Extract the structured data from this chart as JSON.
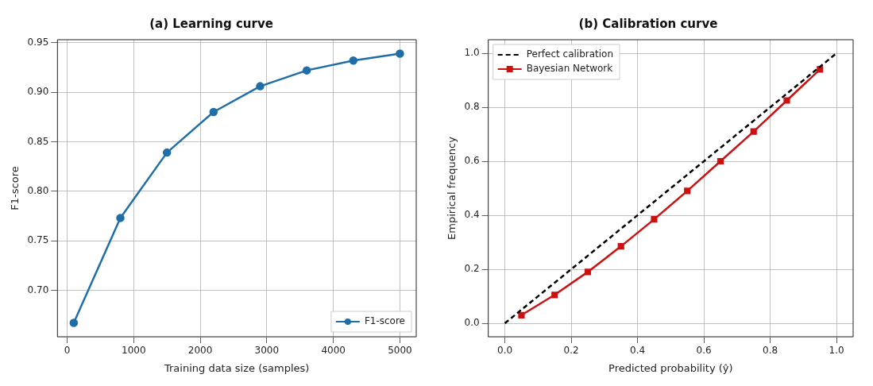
{
  "chart_data": [
    {
      "type": "line",
      "title": "(a) Learning curve",
      "xlabel": "Training data size (samples)",
      "ylabel": "F1-score",
      "x": [
        100,
        800,
        1500,
        2200,
        2900,
        3600,
        4300,
        5000
      ],
      "xlim": [
        -145,
        5245
      ],
      "xticks": [
        0,
        1000,
        2000,
        3000,
        4000,
        5000
      ],
      "ylim": [
        0.653,
        0.953
      ],
      "yticks": [
        {
          "value": 0.7,
          "label": "0.70"
        },
        {
          "value": 0.75,
          "label": "0.75"
        },
        {
          "value": 0.8,
          "label": "0.80"
        },
        {
          "value": 0.85,
          "label": "0.85"
        },
        {
          "value": 0.9,
          "label": "0.90"
        },
        {
          "value": 0.95,
          "label": "0.95"
        }
      ],
      "grid": true,
      "legend": "bottom right",
      "marker": "circle",
      "line_style": "solid",
      "series": [
        {
          "name": "F1-score",
          "color": "#1f6ea8",
          "values": [
            0.667,
            0.773,
            0.839,
            0.88,
            0.906,
            0.922,
            0.932,
            0.939
          ]
        }
      ]
    },
    {
      "type": "line",
      "title": "(b) Calibration curve",
      "xlabel": "Predicted probability (ŷ)",
      "ylabel": "Empirical frequency",
      "xlim": [
        -0.05,
        1.05
      ],
      "xticks": [
        {
          "value": 0,
          "label": "0.0"
        },
        {
          "value": 0.2,
          "label": "0.2"
        },
        {
          "value": 0.4,
          "label": "0.4"
        },
        {
          "value": 0.6,
          "label": "0.6"
        },
        {
          "value": 0.8,
          "label": "0.8"
        },
        {
          "value": 1,
          "label": "1.0"
        }
      ],
      "ylim": [
        -0.05,
        1.05
      ],
      "yticks": [
        {
          "value": 0,
          "label": "0.0"
        },
        {
          "value": 0.2,
          "label": "0.2"
        },
        {
          "value": 0.4,
          "label": "0.4"
        },
        {
          "value": 0.6,
          "label": "0.6"
        },
        {
          "value": 0.8,
          "label": "0.8"
        },
        {
          "value": 1,
          "label": "1.0"
        }
      ],
      "grid": true,
      "legend": "top left",
      "series": [
        {
          "name": "Perfect calibration",
          "color": "#000000",
          "x": [
            0,
            1
          ],
          "values": [
            0,
            1
          ],
          "marker": "none",
          "line_style": "dashed"
        },
        {
          "name": "Bayesian Network",
          "color": "#cc1111",
          "x": [
            0.05,
            0.15,
            0.25,
            0.35,
            0.45,
            0.55,
            0.65,
            0.75,
            0.85,
            0.95
          ],
          "values": [
            0.03,
            0.105,
            0.19,
            0.285,
            0.385,
            0.49,
            0.6,
            0.71,
            0.825,
            0.94
          ],
          "marker": "square",
          "line_style": "solid"
        }
      ]
    }
  ]
}
